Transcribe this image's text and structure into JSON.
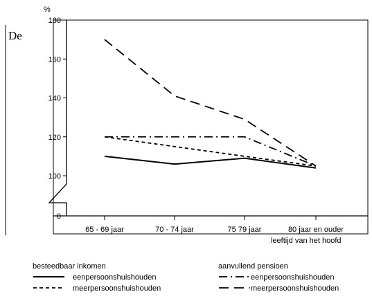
{
  "fragment_text": "De",
  "chart_data": {
    "type": "line",
    "ylabel": "%",
    "xlabel": "leeftijd van het hoofd",
    "ylim": [
      0,
      180
    ],
    "yticks": [
      0,
      100,
      120,
      140,
      160,
      180
    ],
    "axis_break": true,
    "categories": [
      "65 - 69 jaar",
      "70 - 74 jaar",
      "75 79 jaar",
      "80 jaar en ouder"
    ],
    "series": [
      {
        "name": "eenpersoonshuishouden",
        "group": "besteedbaar inkomen",
        "style": "solid",
        "values": [
          110,
          106,
          109,
          104
        ]
      },
      {
        "name": "meerpersoonshuishouden",
        "group": "besteedbaar inkomen",
        "style": "short-dash",
        "values": [
          120,
          115,
          110,
          105
        ]
      },
      {
        "name": "eenpersoonshuishouden",
        "group": "aanvullend pensioen",
        "style": "dash-dot",
        "values": [
          120,
          120,
          120,
          105
        ]
      },
      {
        "name": "meerpersoonshuishouden",
        "group": "aanvullend pensioen",
        "style": "long-dash",
        "values": [
          170,
          141,
          129,
          105
        ]
      }
    ],
    "legend": {
      "placement": "bottom",
      "groups": [
        {
          "title": "besteedbaar inkomen",
          "items": [
            {
              "label": "eenpersoonshuishouden",
              "style": "solid"
            },
            {
              "label": "meerpersoonshuishouden",
              "style": "short-dash"
            }
          ]
        },
        {
          "title": "aanvullend pensioen",
          "items": [
            {
              "label": "eenpersoonshuishouden",
              "style": "dash-dot"
            },
            {
              "label": "meerpersoonshuishouden",
              "style": "long-dash"
            }
          ]
        }
      ]
    }
  }
}
